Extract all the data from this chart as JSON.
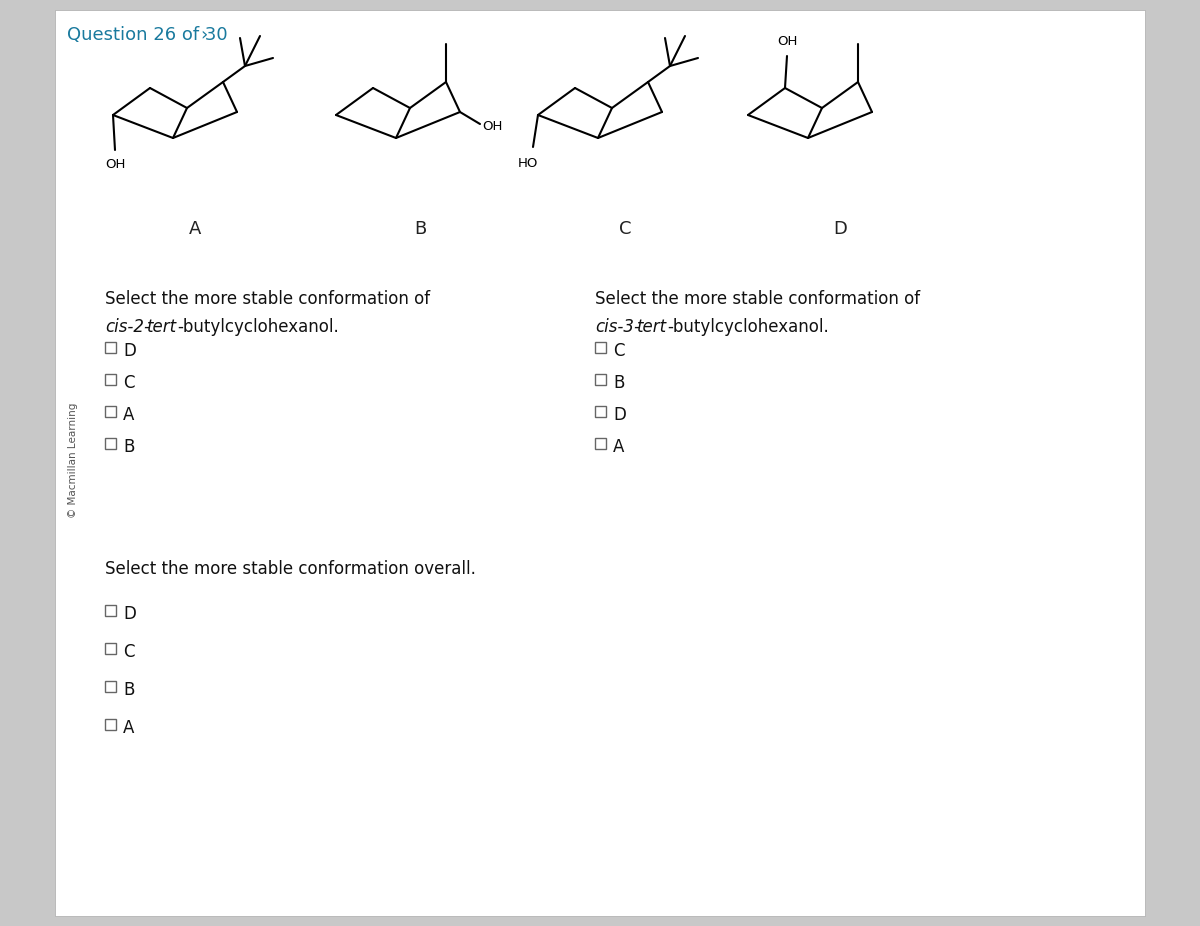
{
  "bg_outer": "#c8c8c8",
  "bg_inner": "#ffffff",
  "header_text": "Question 26 of 30",
  "header_arrow": ">",
  "header_color": "#1a7a9e",
  "copyright_text": "© Macmillan Learning",
  "label_A": "A",
  "label_B": "B",
  "label_C": "C",
  "label_D": "D",
  "q1_line1": "Select the more stable conformation of",
  "q1_line2_pre": "cis-2-",
  "q1_line2_italic": "tert",
  "q1_line2_post": "-butylcyclohexanol.",
  "q1_options": [
    "D",
    "C",
    "A",
    "B"
  ],
  "q2_line1": "Select the more stable conformation of",
  "q2_line2_pre": "cis-3-",
  "q2_line2_italic": "tert",
  "q2_line2_post": "-butylcyclohexanol.",
  "q2_options": [
    "C",
    "B",
    "D",
    "A"
  ],
  "q3_line1": "Select the more stable conformation overall.",
  "q3_options": [
    "D",
    "C",
    "B",
    "A"
  ],
  "line_color": "#000000",
  "line_width": 1.5
}
